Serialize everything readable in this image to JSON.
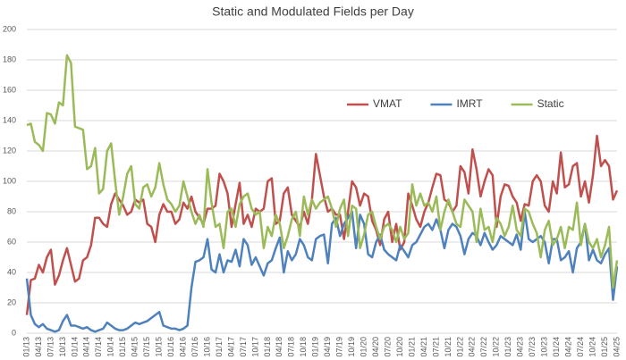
{
  "chart_data": {
    "type": "line",
    "title": "Static and Modulated Fields per Day",
    "categories": [
      "01/13",
      null,
      null,
      "04/13",
      null,
      null,
      "07/13",
      null,
      null,
      "10/13",
      null,
      null,
      "01/14",
      null,
      null,
      "04/14",
      null,
      null,
      "07/14",
      null,
      null,
      "10/14",
      null,
      null,
      "01/15",
      null,
      null,
      "04/15",
      null,
      null,
      "07/15",
      null,
      null,
      "10/15",
      null,
      null,
      "01/16",
      null,
      null,
      "04/16",
      null,
      null,
      "07/16",
      null,
      null,
      "10/16",
      null,
      null,
      "01/17",
      null,
      null,
      "04/17",
      null,
      null,
      "07/17",
      null,
      null,
      "10/17",
      null,
      null,
      "01/18",
      null,
      null,
      "04/18",
      null,
      null,
      "07/18",
      null,
      null,
      "10/18",
      null,
      null,
      "01/19",
      null,
      null,
      "04/19",
      null,
      null,
      "07/19",
      null,
      null,
      "10/19",
      null,
      null,
      "01/20",
      null,
      null,
      "04/20",
      null,
      null,
      "07/20",
      null,
      null,
      "10/20",
      null,
      null,
      "01/21",
      null,
      null,
      "04/21",
      null,
      null,
      "07/21",
      null,
      null,
      "10/21",
      null,
      null,
      "01/22",
      null,
      null,
      "04/22",
      null,
      null,
      "07/22",
      null,
      null,
      "10/22",
      null,
      null,
      "01/23",
      null,
      null,
      "04/23",
      null,
      null,
      "07/23",
      null,
      null,
      "10/23",
      null,
      null,
      "01/24",
      null,
      null,
      "04/24",
      null,
      null,
      "07/24",
      null,
      null,
      "10/24",
      null,
      null,
      "01/25",
      null,
      null,
      "04/25"
    ],
    "series": [
      {
        "name": "VMAT",
        "color": "#c0504d",
        "values": [
          12,
          35,
          36,
          45,
          40,
          50,
          55,
          32,
          38,
          48,
          56,
          45,
          34,
          36,
          48,
          50,
          58,
          76,
          76,
          72,
          70,
          85,
          92,
          88,
          84,
          78,
          80,
          88,
          86,
          88,
          72,
          70,
          60,
          78,
          85,
          80,
          80,
          72,
          75,
          86,
          82,
          90,
          80,
          76,
          72,
          82,
          82,
          84,
          105,
          100,
          92,
          70,
          85,
          99,
          72,
          78,
          70,
          82,
          80,
          82,
          100,
          102,
          72,
          74,
          92,
          96,
          78,
          74,
          70,
          80,
          72,
          88,
          118,
          104,
          90,
          80,
          82,
          78,
          78,
          62,
          80,
          100,
          96,
          84,
          92,
          90,
          74,
          68,
          58,
          75,
          80,
          60,
          72,
          55,
          60,
          92,
          84,
          75,
          70,
          80,
          86,
          96,
          105,
          104,
          88,
          86,
          80,
          84,
          110,
          106,
          92,
          121,
          108,
          90,
          100,
          108,
          104,
          70,
          90,
          98,
          97,
          90,
          86,
          74,
          85,
          84,
          100,
          104,
          100,
          84,
          80,
          100,
          92,
          119,
          96,
          98,
          110,
          112,
          90,
          100,
          86,
          104,
          130,
          110,
          114,
          110,
          88,
          94
        ]
      },
      {
        "name": "IMRT",
        "color": "#4f81bd",
        "values": [
          36,
          12,
          6,
          4,
          6,
          3,
          2,
          1,
          2,
          8,
          12,
          5,
          5,
          4,
          3,
          4,
          2,
          1,
          2,
          3,
          7,
          5,
          3,
          2,
          2,
          3,
          5,
          7,
          6,
          7,
          8,
          10,
          12,
          14,
          5,
          4,
          3,
          3,
          2,
          3,
          5,
          30,
          47,
          48,
          50,
          62,
          42,
          40,
          52,
          40,
          48,
          47,
          55,
          44,
          62,
          58,
          45,
          50,
          44,
          38,
          46,
          48,
          56,
          63,
          40,
          54,
          48,
          52,
          62,
          58,
          50,
          48,
          62,
          64,
          65,
          46,
          72,
          76,
          64,
          72,
          76,
          80,
          56,
          78,
          72,
          52,
          50,
          60,
          65,
          55,
          52,
          50,
          48,
          58,
          54,
          50,
          58,
          60,
          65,
          70,
          72,
          68,
          75,
          68,
          56,
          68,
          72,
          70,
          64,
          52,
          62,
          66,
          64,
          58,
          66,
          60,
          55,
          58,
          64,
          62,
          60,
          58,
          65,
          55,
          80,
          62,
          60,
          62,
          64,
          60,
          46,
          62,
          62,
          48,
          50,
          54,
          40,
          56,
          60,
          72,
          48,
          55,
          48,
          46,
          52,
          56,
          22,
          44
        ]
      },
      {
        "name": "Static",
        "color": "#9bbb59",
        "values": [
          137,
          138,
          126,
          124,
          120,
          145,
          144,
          138,
          152,
          150,
          183,
          178,
          136,
          135,
          134,
          108,
          110,
          122,
          92,
          95,
          120,
          125,
          100,
          78,
          90,
          105,
          110,
          85,
          82,
          96,
          98,
          90,
          96,
          112,
          98,
          88,
          85,
          80,
          84,
          100,
          90,
          80,
          72,
          78,
          70,
          108,
          86,
          70,
          72,
          56,
          80,
          82,
          70,
          85,
          90,
          92,
          82,
          78,
          80,
          56,
          70,
          64,
          78,
          72,
          56,
          64,
          75,
          80,
          64,
          90,
          78,
          88,
          82,
          86,
          88,
          90,
          82,
          70,
          82,
          88,
          64,
          84,
          82,
          56,
          65,
          78,
          80,
          70,
          62,
          70,
          72,
          68,
          60,
          70,
          62,
          66,
          98,
          84,
          92,
          84,
          86,
          80,
          90,
          68,
          80,
          88,
          80,
          72,
          70,
          88,
          84,
          80,
          60,
          82,
          68,
          70,
          60,
          76,
          72,
          64,
          70,
          84,
          68,
          64,
          82,
          80,
          72,
          66,
          50,
          68,
          74,
          58,
          62,
          70,
          56,
          70,
          68,
          86,
          58,
          72,
          60,
          56,
          62,
          50,
          58,
          70,
          30,
          48
        ]
      }
    ],
    "ylim": [
      0,
      200
    ],
    "yticks": [
      0,
      20,
      40,
      60,
      80,
      100,
      120,
      140,
      160,
      180,
      200
    ],
    "grid": true,
    "legend_position": "right"
  }
}
